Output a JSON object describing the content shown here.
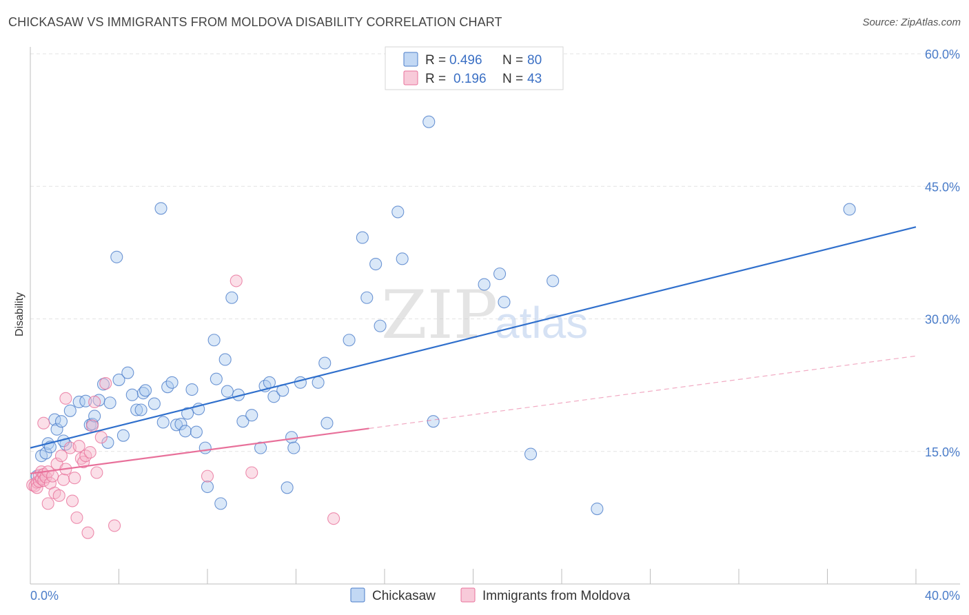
{
  "header": {
    "title": "CHICKASAW VS IMMIGRANTS FROM MOLDOVA DISABILITY CORRELATION CHART",
    "source": "Source: ZipAtlas.com"
  },
  "watermark": {
    "zip": "ZIP",
    "atlas": "atlas"
  },
  "colors": {
    "blue": "#4a7cc9",
    "blue_fill": "#aecbf0",
    "blue_line": "#2f6fcc",
    "pink": "#e8709a",
    "pink_fill": "#f6b8cc",
    "grid": "#e3e3e3",
    "axis": "#bdbdbd"
  },
  "legend": {
    "rows": [
      {
        "r_label": "R =",
        "r_value": "0.496",
        "n_label": "N =",
        "n_value": "80",
        "color": "blue"
      },
      {
        "r_label": "R =",
        "r_value": "0.196",
        "n_label": "N =",
        "n_value": "43",
        "color": "pink"
      }
    ]
  },
  "chart_data": {
    "type": "scatter",
    "title": "CHICKASAW VS IMMIGRANTS FROM MOLDOVA DISABILITY CORRELATION CHART",
    "xlabel": "",
    "ylabel": "Disability",
    "xlim": [
      0,
      40
    ],
    "ylim": [
      0,
      60
    ],
    "x_tick_labels": [
      "0.0%",
      "40.0%"
    ],
    "y_ticks": [
      15,
      30,
      45,
      60
    ],
    "y_tick_labels": [
      "15.0%",
      "30.0%",
      "45.0%",
      "60.0%"
    ],
    "grid": true,
    "legend_position": "top-center",
    "series": [
      {
        "name": "Chickasaw",
        "color": "blue",
        "r": 0.496,
        "n": 80,
        "trend": {
          "x": [
            0,
            40
          ],
          "y": [
            15.4,
            40.4
          ],
          "style": "solid"
        },
        "points": [
          [
            0.3,
            12.2
          ],
          [
            0.5,
            14.5
          ],
          [
            0.7,
            14.8
          ],
          [
            0.8,
            15.9
          ],
          [
            0.9,
            15.5
          ],
          [
            1.1,
            18.6
          ],
          [
            1.2,
            17.5
          ],
          [
            1.4,
            18.4
          ],
          [
            1.6,
            15.8
          ],
          [
            1.8,
            19.6
          ],
          [
            2.2,
            20.6
          ],
          [
            2.5,
            20.7
          ],
          [
            2.7,
            18.0
          ],
          [
            2.8,
            18.1
          ],
          [
            3.1,
            20.8
          ],
          [
            3.3,
            22.6
          ],
          [
            3.5,
            16.0
          ],
          [
            3.6,
            20.5
          ],
          [
            3.9,
            37.0
          ],
          [
            4.0,
            23.1
          ],
          [
            4.2,
            16.8
          ],
          [
            4.4,
            23.9
          ],
          [
            4.6,
            21.4
          ],
          [
            4.8,
            19.7
          ],
          [
            5.0,
            19.7
          ],
          [
            5.1,
            21.6
          ],
          [
            5.2,
            21.9
          ],
          [
            5.6,
            20.4
          ],
          [
            5.9,
            42.5
          ],
          [
            6.0,
            18.3
          ],
          [
            6.2,
            22.3
          ],
          [
            6.4,
            22.8
          ],
          [
            6.6,
            18.0
          ],
          [
            6.8,
            18.1
          ],
          [
            7.0,
            17.3
          ],
          [
            7.1,
            19.3
          ],
          [
            7.3,
            22.0
          ],
          [
            7.5,
            17.2
          ],
          [
            7.6,
            19.8
          ],
          [
            7.9,
            15.4
          ],
          [
            8.0,
            11.0
          ],
          [
            8.3,
            27.6
          ],
          [
            8.4,
            23.2
          ],
          [
            8.6,
            9.1
          ],
          [
            8.8,
            25.4
          ],
          [
            8.9,
            21.8
          ],
          [
            9.1,
            32.4
          ],
          [
            9.4,
            21.4
          ],
          [
            9.6,
            18.4
          ],
          [
            10.0,
            19.1
          ],
          [
            10.4,
            15.4
          ],
          [
            10.6,
            22.4
          ],
          [
            10.8,
            22.8
          ],
          [
            11.0,
            21.2
          ],
          [
            11.4,
            21.9
          ],
          [
            11.6,
            10.9
          ],
          [
            11.8,
            16.6
          ],
          [
            11.9,
            15.4
          ],
          [
            12.2,
            22.8
          ],
          [
            13.0,
            22.8
          ],
          [
            13.3,
            25.0
          ],
          [
            13.4,
            18.2
          ],
          [
            14.4,
            27.6
          ],
          [
            15.0,
            39.2
          ],
          [
            15.2,
            32.4
          ],
          [
            15.6,
            36.2
          ],
          [
            15.8,
            29.2
          ],
          [
            16.6,
            42.1
          ],
          [
            16.8,
            36.8
          ],
          [
            18.0,
            52.3
          ],
          [
            18.2,
            18.4
          ],
          [
            20.5,
            33.9
          ],
          [
            21.2,
            35.1
          ],
          [
            21.4,
            31.9
          ],
          [
            22.6,
            14.7
          ],
          [
            23.6,
            34.3
          ],
          [
            25.6,
            8.5
          ],
          [
            37.0,
            42.4
          ],
          [
            1.5,
            16.2
          ],
          [
            2.9,
            19.0
          ]
        ]
      },
      {
        "name": "Immigrants from Moldova",
        "color": "pink",
        "r": 0.196,
        "n": 43,
        "trend": {
          "x": [
            0,
            15.3
          ],
          "y": [
            12.5,
            17.6
          ],
          "style": "solid"
        },
        "trend_extension": {
          "x": [
            15.3,
            40
          ],
          "y": [
            17.6,
            25.8
          ],
          "style": "dashed"
        },
        "points": [
          [
            0.1,
            11.2
          ],
          [
            0.2,
            11.1
          ],
          [
            0.3,
            11.5
          ],
          [
            0.3,
            10.9
          ],
          [
            0.4,
            11.6
          ],
          [
            0.4,
            12.3
          ],
          [
            0.5,
            12.7
          ],
          [
            0.5,
            11.9
          ],
          [
            0.6,
            12.4
          ],
          [
            0.6,
            11.7
          ],
          [
            0.7,
            12.1
          ],
          [
            0.8,
            12.7
          ],
          [
            0.8,
            9.1
          ],
          [
            0.9,
            11.4
          ],
          [
            1.0,
            12.2
          ],
          [
            1.1,
            10.3
          ],
          [
            1.2,
            13.6
          ],
          [
            1.3,
            10.0
          ],
          [
            1.4,
            14.5
          ],
          [
            1.5,
            11.8
          ],
          [
            1.6,
            13.0
          ],
          [
            1.6,
            21.0
          ],
          [
            1.8,
            15.4
          ],
          [
            1.9,
            9.4
          ],
          [
            2.0,
            12.0
          ],
          [
            2.1,
            7.5
          ],
          [
            2.2,
            15.6
          ],
          [
            2.3,
            14.2
          ],
          [
            2.4,
            13.8
          ],
          [
            2.5,
            14.5
          ],
          [
            2.6,
            5.8
          ],
          [
            2.7,
            14.9
          ],
          [
            2.8,
            17.9
          ],
          [
            2.9,
            20.6
          ],
          [
            3.0,
            12.6
          ],
          [
            3.2,
            16.6
          ],
          [
            3.4,
            22.7
          ],
          [
            3.8,
            6.6
          ],
          [
            8.0,
            12.2
          ],
          [
            9.3,
            34.3
          ],
          [
            10.0,
            12.6
          ],
          [
            13.7,
            7.4
          ],
          [
            0.6,
            18.2
          ]
        ]
      }
    ]
  },
  "bottom_legend": {
    "items": [
      {
        "label": "Chickasaw",
        "color": "blue"
      },
      {
        "label": "Immigrants from Moldova",
        "color": "pink"
      }
    ]
  }
}
